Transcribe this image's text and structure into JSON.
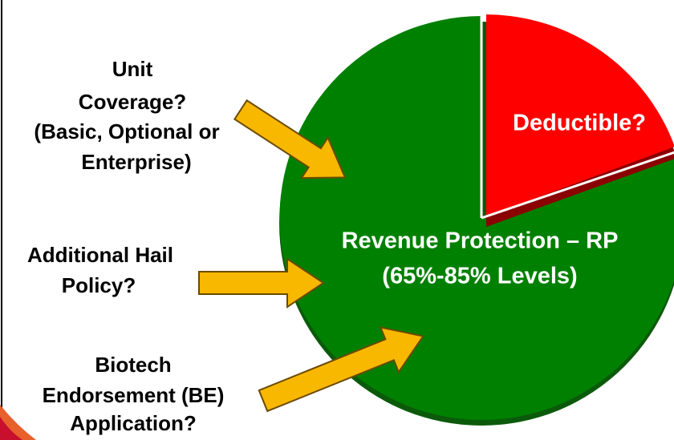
{
  "labels": {
    "unit_coverage": [
      "Unit",
      "Coverage?",
      "(Basic, Optional or",
      "Enterprise)"
    ],
    "hail": [
      "Additional Hail",
      "Policy?"
    ],
    "biotech": [
      "Biotech",
      "Endorsement (BE)",
      "Application?"
    ]
  },
  "pie": {
    "deductible": "Deductible?",
    "main": [
      "Revenue Protection – RP",
      "(65%-85% Levels)"
    ]
  }
}
